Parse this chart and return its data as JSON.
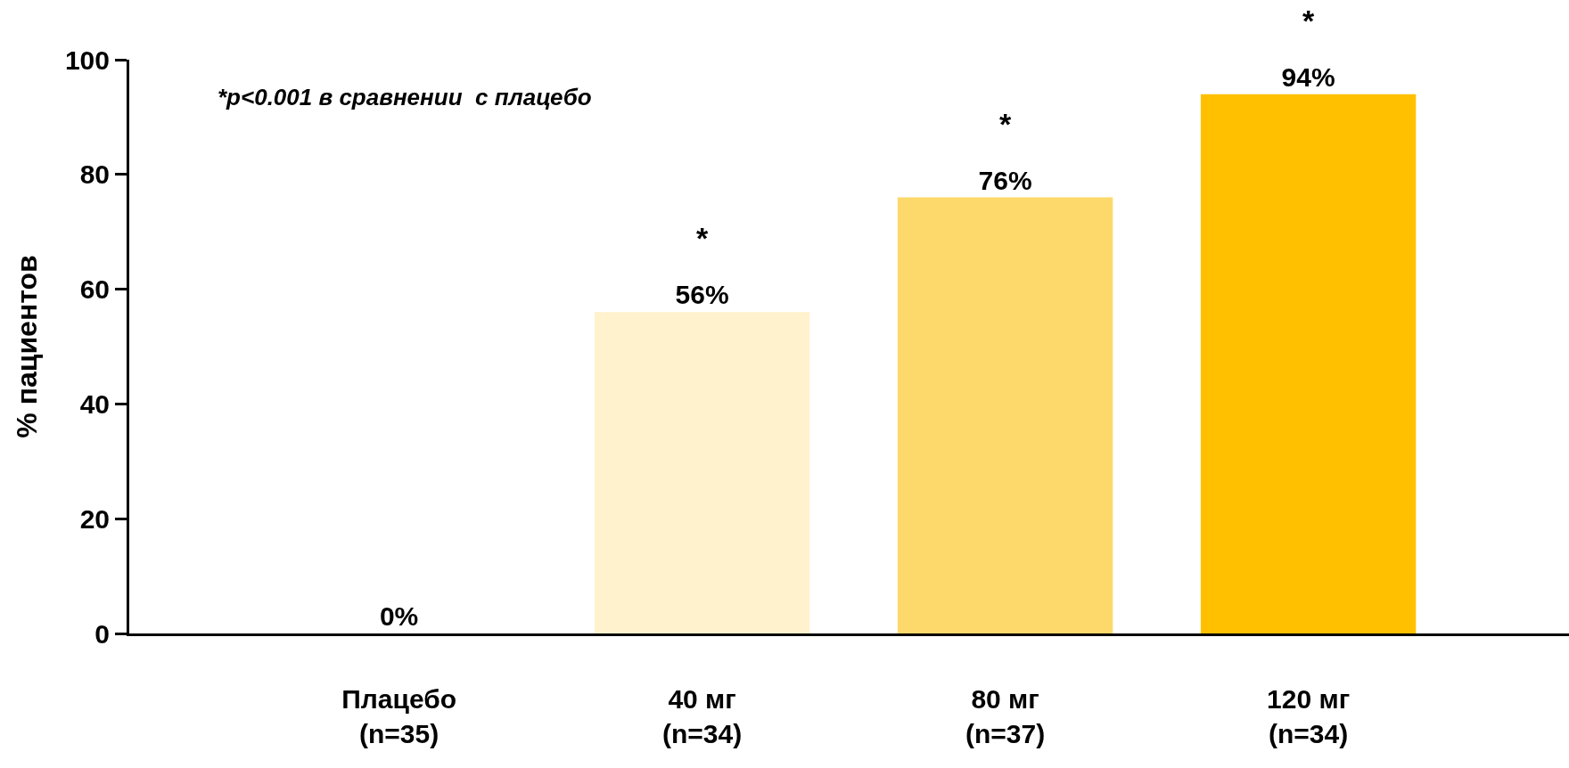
{
  "chart_data": {
    "type": "bar",
    "categories": [
      "Плацебо\n(n=35)",
      "40 мг\n(n=34)",
      "80 мг\n(n=37)",
      "120 мг\n(n=34)"
    ],
    "values": [
      0,
      56,
      76,
      94
    ],
    "colors": [
      null,
      "#fff2cc",
      "#fdd96b",
      "#ffc000"
    ],
    "value_labels": [
      "0%",
      "56%",
      "76%",
      "94%"
    ],
    "ylabel": "% пациентов",
    "ylim": [
      0,
      100
    ],
    "yticks": [
      0,
      20,
      40,
      60,
      80,
      100
    ],
    "annotations": [
      "*p<0.001 в сравнении  с плацебо",
      {
        "text": "*",
        "x": "40 мг\n(n=34)",
        "y": 56
      },
      {
        "text": "*",
        "x": "80 мг\n(n=37)",
        "y": 76
      },
      {
        "text": "*",
        "x": "120 мг\n(n=34)",
        "y": 94
      }
    ]
  }
}
